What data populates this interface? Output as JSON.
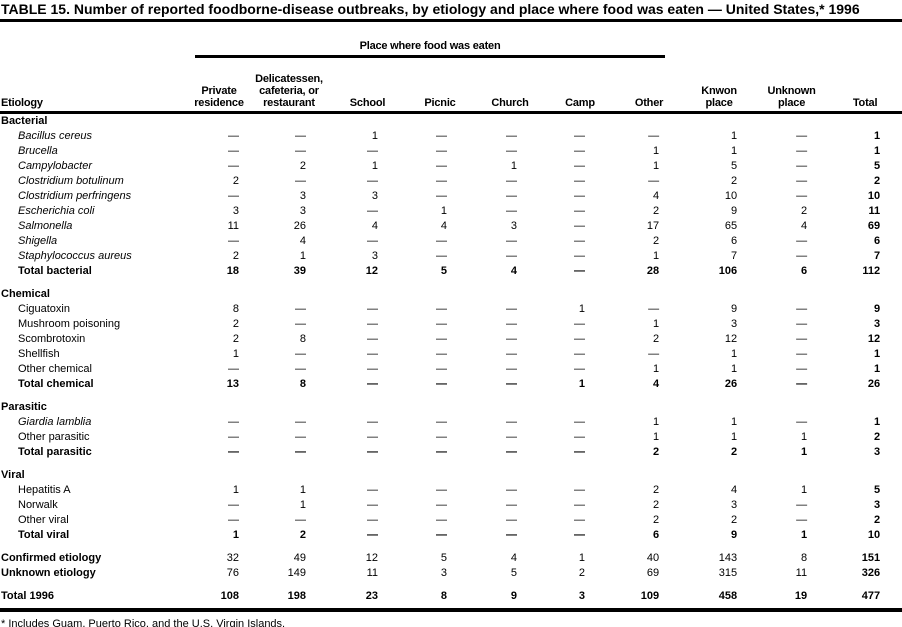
{
  "title": "TABLE 15. Number of reported foodborne-disease outbreaks, by etiology and place where food was eaten — United States,* 1996",
  "footnote": "* Includes Guam, Puerto Rico, and the U.S. Virgin Islands.",
  "table": {
    "spanner": "Place where food was eaten",
    "columns": [
      "Etiology",
      "Private\nresidence",
      "Delicatessen,\ncafeteria, or\nrestaurant",
      "School",
      "Picnic",
      "Church",
      "Camp",
      "Other",
      "Knwon\nplace",
      "Unknown\nplace",
      "Total"
    ],
    "rows": [
      {
        "label": "Bacterial",
        "style": "section",
        "gap": false,
        "values": [
          "",
          "",
          "",
          "",
          "",
          "",
          "",
          "",
          "",
          ""
        ]
      },
      {
        "label": "Bacillus cereus",
        "style": "species",
        "gap": false,
        "values": [
          "—",
          "—",
          "1",
          "—",
          "—",
          "—",
          "—",
          "1",
          "—",
          "1"
        ]
      },
      {
        "label": "Brucella",
        "style": "species",
        "gap": false,
        "values": [
          "—",
          "—",
          "—",
          "—",
          "—",
          "—",
          "1",
          "1",
          "—",
          "1"
        ]
      },
      {
        "label": "Campylobacter",
        "style": "species",
        "gap": false,
        "values": [
          "—",
          "2",
          "1",
          "—",
          "1",
          "—",
          "1",
          "5",
          "—",
          "5"
        ]
      },
      {
        "label": "Clostridium botulinum",
        "style": "species",
        "gap": false,
        "values": [
          "2",
          "—",
          "—",
          "—",
          "—",
          "—",
          "—",
          "2",
          "—",
          "2"
        ]
      },
      {
        "label": "Clostridium perfringens",
        "style": "species",
        "gap": false,
        "values": [
          "—",
          "3",
          "3",
          "—",
          "—",
          "—",
          "4",
          "10",
          "—",
          "10"
        ]
      },
      {
        "label": "Escherichia coli",
        "style": "species",
        "gap": false,
        "values": [
          "3",
          "3",
          "—",
          "1",
          "—",
          "—",
          "2",
          "9",
          "2",
          "11"
        ]
      },
      {
        "label": "Salmonella",
        "style": "species",
        "gap": false,
        "values": [
          "11",
          "26",
          "4",
          "4",
          "3",
          "—",
          "17",
          "65",
          "4",
          "69"
        ]
      },
      {
        "label": "Shigella",
        "style": "species",
        "gap": false,
        "values": [
          "—",
          "4",
          "—",
          "—",
          "—",
          "—",
          "2",
          "6",
          "—",
          "6"
        ]
      },
      {
        "label": "Staphylococcus aureus",
        "style": "species",
        "gap": false,
        "values": [
          "2",
          "1",
          "3",
          "—",
          "—",
          "—",
          "1",
          "7",
          "—",
          "7"
        ]
      },
      {
        "label": "Total bacterial",
        "style": "subtotal",
        "gap": false,
        "values": [
          "18",
          "39",
          "12",
          "5",
          "4",
          "—",
          "28",
          "106",
          "6",
          "112"
        ]
      },
      {
        "label": "Chemical",
        "style": "section",
        "gap": true,
        "values": [
          "",
          "",
          "",
          "",
          "",
          "",
          "",
          "",
          "",
          ""
        ]
      },
      {
        "label": "Ciguatoxin",
        "style": "plain",
        "gap": false,
        "values": [
          "8",
          "—",
          "—",
          "—",
          "—",
          "1",
          "—",
          "9",
          "—",
          "9"
        ]
      },
      {
        "label": "Mushroom poisoning",
        "style": "plain",
        "gap": false,
        "values": [
          "2",
          "—",
          "—",
          "—",
          "—",
          "—",
          "1",
          "3",
          "—",
          "3"
        ]
      },
      {
        "label": "Scombrotoxin",
        "style": "plain",
        "gap": false,
        "values": [
          "2",
          "8",
          "—",
          "—",
          "—",
          "—",
          "2",
          "12",
          "—",
          "12"
        ]
      },
      {
        "label": "Shellfish",
        "style": "plain",
        "gap": false,
        "values": [
          "1",
          "—",
          "—",
          "—",
          "—",
          "—",
          "—",
          "1",
          "—",
          "1"
        ]
      },
      {
        "label": "Other chemical",
        "style": "plain",
        "gap": false,
        "values": [
          "—",
          "—",
          "—",
          "—",
          "—",
          "—",
          "1",
          "1",
          "—",
          "1"
        ]
      },
      {
        "label": "Total chemical",
        "style": "subtotal",
        "gap": false,
        "values": [
          "13",
          "8",
          "—",
          "—",
          "—",
          "1",
          "4",
          "26",
          "—",
          "26"
        ]
      },
      {
        "label": "Parasitic",
        "style": "section",
        "gap": true,
        "values": [
          "",
          "",
          "",
          "",
          "",
          "",
          "",
          "",
          "",
          ""
        ]
      },
      {
        "label": "Giardia lamblia",
        "style": "species",
        "gap": false,
        "values": [
          "—",
          "—",
          "—",
          "—",
          "—",
          "—",
          "1",
          "1",
          "—",
          "1"
        ]
      },
      {
        "label": "Other parasitic",
        "style": "plain",
        "gap": false,
        "values": [
          "—",
          "—",
          "—",
          "—",
          "—",
          "—",
          "1",
          "1",
          "1",
          "2"
        ]
      },
      {
        "label": "Total parasitic",
        "style": "subtotal",
        "gap": false,
        "values": [
          "—",
          "—",
          "—",
          "—",
          "—",
          "—",
          "2",
          "2",
          "1",
          "3"
        ]
      },
      {
        "label": "Viral",
        "style": "section",
        "gap": true,
        "values": [
          "",
          "",
          "",
          "",
          "",
          "",
          "",
          "",
          "",
          ""
        ]
      },
      {
        "label": "Hepatitis A",
        "style": "plain",
        "gap": false,
        "values": [
          "1",
          "1",
          "—",
          "—",
          "—",
          "—",
          "2",
          "4",
          "1",
          "5"
        ]
      },
      {
        "label": "Norwalk",
        "style": "plain",
        "gap": false,
        "values": [
          "—",
          "1",
          "—",
          "—",
          "—",
          "—",
          "2",
          "3",
          "—",
          "3"
        ]
      },
      {
        "label": "Other viral",
        "style": "plain",
        "gap": false,
        "values": [
          "—",
          "—",
          "—",
          "—",
          "—",
          "—",
          "2",
          "2",
          "—",
          "2"
        ]
      },
      {
        "label": "Total viral",
        "style": "subtotal",
        "gap": false,
        "values": [
          "1",
          "2",
          "—",
          "—",
          "—",
          "—",
          "6",
          "9",
          "1",
          "10"
        ]
      },
      {
        "label": "Confirmed etiology",
        "style": "summary",
        "gap": true,
        "values": [
          "32",
          "49",
          "12",
          "5",
          "4",
          "1",
          "40",
          "143",
          "8",
          "151"
        ]
      },
      {
        "label": "Unknown etiology",
        "style": "summary",
        "gap": false,
        "values": [
          "76",
          "149",
          "11",
          "3",
          "5",
          "2",
          "69",
          "315",
          "11",
          "326"
        ]
      },
      {
        "label": "Total 1996",
        "style": "grand",
        "gap": true,
        "values": [
          "108",
          "198",
          "23",
          "8",
          "9",
          "3",
          "109",
          "458",
          "19",
          "477"
        ]
      }
    ]
  }
}
